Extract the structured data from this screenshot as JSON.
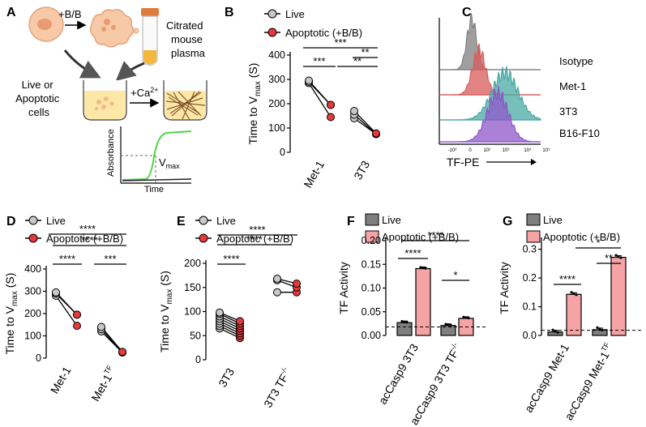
{
  "panel_labels": {
    "A": "A",
    "B": "B",
    "C": "C",
    "D": "D",
    "E": "E",
    "F": "F",
    "G": "G"
  },
  "panel_a": {
    "bb_label": "+B/B",
    "tube_label": [
      "Citrated",
      "mouse",
      "plasma"
    ],
    "cells_label": [
      "Live or",
      "Apoptotic",
      "cells"
    ],
    "ca_label": "+Ca",
    "ca_superscript": "2+",
    "absorbance_label": "Absorbance",
    "time_label": "Time",
    "vmax_label": "V",
    "vmax_subscript": "max"
  },
  "legend": {
    "live": "Live",
    "apoptotic": "Apoptotic (+B/B)"
  },
  "colors": {
    "live_dot": "#c8c8c8",
    "apo_dot": "#e8393a",
    "bar_live": "#7f7f7f",
    "bar_apo": "#f5a3a5",
    "green_curve": "#52d64a"
  },
  "significance": {
    "s1": "*",
    "s2": "**",
    "s3": "***",
    "s4": "****"
  },
  "chart_data": [
    {
      "panel": "B",
      "type": "scatter",
      "ylabel": "Time to V",
      "ylabel_sub": "max",
      "ylabel_suffix": " (S)",
      "ylim": [
        0,
        400
      ],
      "yticks": [
        "0",
        "100",
        "200",
        "300",
        "400"
      ],
      "categories": [
        "Met-1",
        "3T3"
      ],
      "pairs": [
        {
          "category": "Met-1",
          "live": [
            285,
            290,
            295
          ],
          "apoptotic": [
            145,
            195,
            195
          ]
        },
        {
          "category": "3T3",
          "live": [
            140,
            155,
            170
          ],
          "apoptotic": [
            75,
            75,
            78
          ]
        }
      ],
      "significance": [
        "***",
        "***",
        "**",
        "**"
      ]
    },
    {
      "panel": "C",
      "type": "histogram",
      "xlabel": "TF-PE",
      "xticks": [
        "-10²",
        "0",
        "10²",
        "10³",
        "10⁴",
        "10⁵"
      ],
      "series": [
        {
          "name": "Isotype",
          "color": "#7f7f7f"
        },
        {
          "name": "Met-1",
          "color": "#d85b5b"
        },
        {
          "name": "3T3",
          "color": "#4aa9a3"
        },
        {
          "name": "B16-F10",
          "color": "#8e57c9"
        }
      ]
    },
    {
      "panel": "D",
      "type": "scatter",
      "ylabel": "Time to V",
      "ylabel_sub": "max",
      "ylabel_suffix": " (S)",
      "ylim": [
        0,
        400
      ],
      "yticks": [
        "0",
        "100",
        "200",
        "300",
        "400"
      ],
      "categories": [
        "Met-1",
        "Met-1"
      ],
      "category_superscripts": [
        "",
        "TF"
      ],
      "pairs": [
        {
          "category": "Met-1",
          "live": [
            280,
            290,
            295
          ],
          "apoptotic": [
            145,
            195,
            195
          ]
        },
        {
          "category": "Met-1TF",
          "live": [
            120,
            130,
            140
          ],
          "apoptotic": [
            25,
            27,
            28
          ]
        }
      ],
      "significance": [
        "****",
        "****",
        "****",
        "***"
      ]
    },
    {
      "panel": "E",
      "type": "scatter",
      "ylabel": "Time to V",
      "ylabel_sub": "max",
      "ylabel_suffix": " (S)",
      "ylim": [
        0,
        200
      ],
      "yticks": [
        "0",
        "50",
        "100",
        "150",
        "200"
      ],
      "categories": [
        "3T3",
        "3T3 TF"
      ],
      "category_superscripts": [
        "",
        "-/-"
      ],
      "pairs": [
        {
          "category": "3T3",
          "live": [
            65,
            70,
            75,
            80,
            85,
            90,
            95,
            98
          ],
          "apoptotic": [
            45,
            50,
            55,
            60,
            65,
            70,
            75,
            80
          ]
        },
        {
          "category": "3T3 TF-/-",
          "live": [
            140,
            165,
            168
          ],
          "apoptotic": [
            140,
            150,
            158
          ]
        }
      ],
      "significance": [
        "****",
        "****",
        "****"
      ]
    },
    {
      "panel": "F",
      "type": "bar",
      "ylabel": "TF Activity",
      "ylim": [
        0,
        0.2
      ],
      "yticks": [
        "0.00",
        "0.05",
        "0.10",
        "0.15",
        "0.20"
      ],
      "categories": [
        "acCasp9 3T3",
        "acCasp9 3T3 TF"
      ],
      "category_superscripts": [
        "",
        "-/-"
      ],
      "series": [
        {
          "name": "Live",
          "values": [
            0.027,
            0.021
          ]
        },
        {
          "name": "Apoptotic (+B/B)",
          "values": [
            0.141,
            0.036
          ]
        }
      ],
      "baseline": 0.018,
      "significance": [
        "****",
        "*",
        "****"
      ]
    },
    {
      "panel": "G",
      "type": "bar",
      "ylabel": "TF Activity",
      "ylim": [
        0,
        0.33
      ],
      "yticks": [
        "0.0",
        "0.1",
        "0.2",
        "0.3"
      ],
      "categories": [
        "acCasp9 Met-1",
        "acCasp9 Met-1"
      ],
      "category_superscripts": [
        "",
        "TF"
      ],
      "series": [
        {
          "name": "Live",
          "values": [
            0.012,
            0.02
          ]
        },
        {
          "name": "Apoptotic (+B/B)",
          "values": [
            0.143,
            0.272
          ]
        }
      ],
      "baseline": 0.018,
      "significance": [
        "****",
        "**",
        "*"
      ]
    }
  ]
}
